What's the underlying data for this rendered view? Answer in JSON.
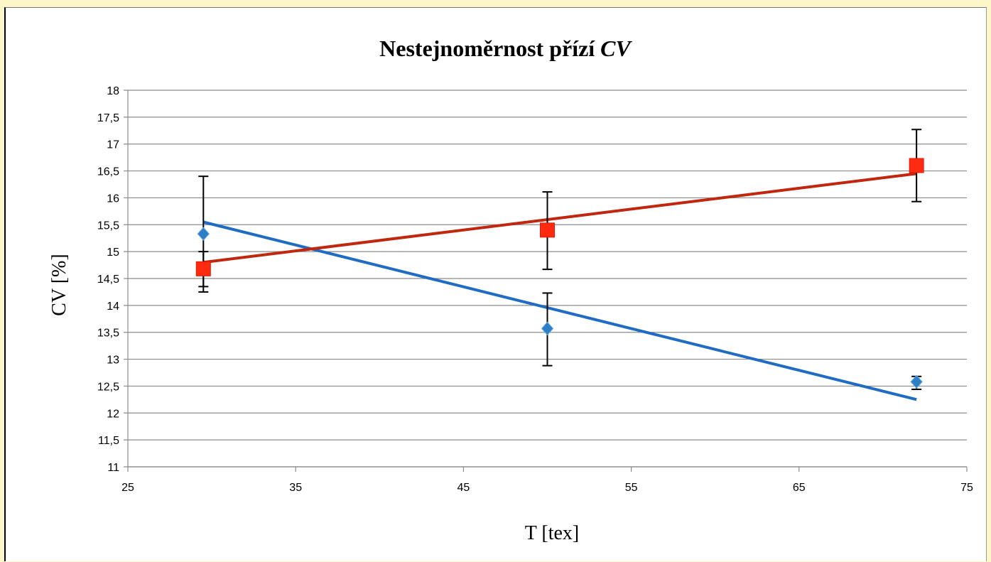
{
  "chart_data": {
    "type": "scatter",
    "title": "Nestejnoměrnost přízí ",
    "title_italic": "CV",
    "xlabel": "T [tex]",
    "ylabel": "CV [%]",
    "xlim": [
      25,
      75
    ],
    "ylim": [
      11,
      18
    ],
    "x_ticks": [
      25,
      35,
      45,
      55,
      65,
      75
    ],
    "y_ticks": [
      11,
      11.5,
      12,
      12.5,
      13,
      13.5,
      14,
      14.5,
      15,
      15.5,
      16,
      16.5,
      17,
      17.5,
      18
    ],
    "x_tick_labels": [
      "25",
      "35",
      "45",
      "55",
      "65",
      "75"
    ],
    "y_tick_labels": [
      "11",
      "11,5",
      "12",
      "12,5",
      "13",
      "13,5",
      "14",
      "14,5",
      "15",
      "15,5",
      "16",
      "16,5",
      "17",
      "17,5",
      "18"
    ],
    "grid": true,
    "series": [
      {
        "color": "#2e7fc6",
        "trend_color": "#1f6cc2",
        "marker": "diamond",
        "points": [
          {
            "x": 29.5,
            "y": 15.33,
            "err_low": 14.25,
            "err_high": 16.4
          },
          {
            "x": 50,
            "y": 13.57,
            "err_low": 12.88,
            "err_high": 14.23
          },
          {
            "x": 72,
            "y": 12.58,
            "err_low": 12.44,
            "err_high": 12.68
          }
        ],
        "trendline": [
          [
            29.5,
            15.55
          ],
          [
            72,
            12.25
          ]
        ]
      },
      {
        "color": "#ff2a10",
        "trend_color": "#c1270f",
        "marker": "square",
        "points": [
          {
            "x": 29.5,
            "y": 14.68,
            "err_low": 14.35,
            "err_high": 15.0
          },
          {
            "x": 50,
            "y": 15.4,
            "err_low": 14.67,
            "err_high": 16.11
          },
          {
            "x": 72,
            "y": 16.6,
            "err_low": 15.93,
            "err_high": 17.27
          }
        ],
        "trendline": [
          [
            29.5,
            14.8
          ],
          [
            72,
            16.45
          ]
        ]
      }
    ]
  }
}
